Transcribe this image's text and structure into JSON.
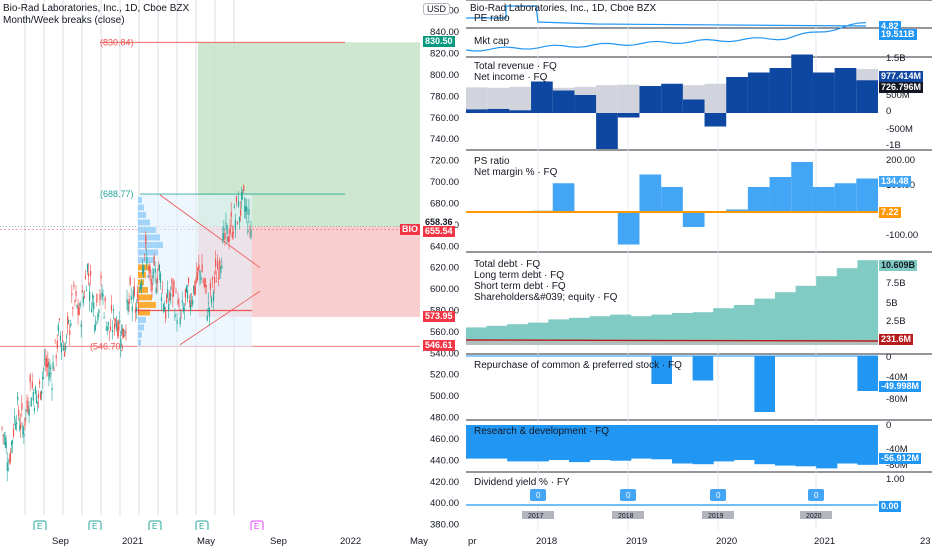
{
  "main_chart": {
    "title": "Bio-Rad Laboratories, Inc., 1D, Cboe BZX",
    "indicator": "Month/Week breaks (close)",
    "currency": "USD",
    "symbol_tag": "BIO",
    "target_label": "(830.84)",
    "mid_label": "(688.77)",
    "low_label": "(546.70)",
    "price_tags": {
      "target": "830.50",
      "price": "658.36",
      "bio": "655.54",
      "stop_upper": "573.95",
      "stop": "546.61"
    },
    "earnings_marker": "E",
    "colors": {
      "up": "#26a69a",
      "down": "#ef5350",
      "target_zone": "#c8e6c9",
      "stop_zone": "#f8c9c9",
      "target_tag": "#089981",
      "stop_tag": "#f23645"
    }
  },
  "chart_data": [
    {
      "type": "line",
      "title": "Bio-Rad Laboratories, Inc., 1D, Cboe BZX",
      "xlabel": "",
      "ylabel": "",
      "x_ticks": [
        "Sep",
        "2021",
        "May",
        "Sep",
        "2022",
        "May"
      ],
      "y_ticks": [
        380,
        400,
        420,
        440,
        460,
        480,
        500,
        520,
        540,
        560,
        580,
        600,
        620,
        640,
        660,
        680,
        700,
        720,
        740,
        760,
        780,
        800,
        820,
        840,
        860
      ],
      "ylim": [
        375,
        870
      ],
      "series": [
        {
          "values": [
            470,
            440,
            490,
            470,
            510,
            495,
            530,
            520,
            560,
            545,
            590,
            575,
            620,
            580,
            600,
            560,
            575,
            560,
            590,
            580,
            640,
            600,
            620,
            580,
            600,
            570,
            590,
            600,
            620,
            580,
            610,
            640,
            655,
            670,
            680,
            655
          ]
        }
      ],
      "levels": {
        "target": 830.5,
        "entry": 658.36,
        "last": 655.54,
        "stop_upper": 573.95,
        "stop": 546.61,
        "mid": 688.77
      }
    },
    {
      "type": "line",
      "title": "PE ratio",
      "y_ticks": [],
      "series": [
        {
          "name": "PE ratio",
          "values": [
            90,
            75,
            4.82,
            4.82,
            4.82,
            4.82,
            4.82
          ]
        }
      ],
      "last_value": "4.82"
    },
    {
      "type": "line",
      "title": "Mkt cap",
      "series": [
        {
          "name": "Mkt cap",
          "values": [
            13.5,
            13.8,
            14.0,
            14.6,
            15.3,
            16.8,
            19.5
          ]
        }
      ],
      "last_value": "19.511B"
    },
    {
      "type": "bar",
      "title": "Total revenue · FQ / Net income · FQ",
      "y_ticks": [
        "1.5B",
        "1B",
        "500M",
        "0",
        "-500M",
        "-1B"
      ],
      "ylim": [
        -1200,
        1700
      ],
      "series": [
        {
          "name": "Total revenue · FQ",
          "values": [
            570,
            560,
            580,
            600,
            560,
            580,
            620,
            630,
            540,
            600,
            620,
            650,
            680,
            720,
            740,
            760,
            790,
            820,
            977
          ]
        },
        {
          "name": "Net income · FQ",
          "values": [
            80,
            90,
            60,
            700,
            500,
            400,
            -800,
            -100,
            600,
            650,
            300,
            -300,
            800,
            900,
            1000,
            1300,
            900,
            1000,
            727
          ]
        }
      ],
      "last_values": [
        "977.414M",
        "726.796M"
      ]
    },
    {
      "type": "bar",
      "title": "PS ratio / Net margin % · FQ",
      "y_ticks": [
        "200.00",
        "100.00",
        "0.00",
        "-100.00"
      ],
      "ylim": [
        -170,
        230
      ],
      "series": [
        {
          "name": "Net margin % · FQ",
          "values": [
            0,
            0,
            0,
            5,
            115,
            0,
            0,
            -130,
            150,
            100,
            -60,
            0,
            10,
            100,
            140,
            200,
            100,
            115,
            134
          ]
        },
        {
          "name": "PS ratio",
          "values": [
            7,
            7,
            7,
            7,
            7,
            7,
            7,
            7,
            7,
            7,
            7,
            7,
            7,
            7,
            7,
            7,
            7,
            7,
            7.22
          ]
        }
      ],
      "last_values": [
        "134.48",
        "7.22"
      ]
    },
    {
      "type": "area",
      "title": "Total debt · FQ / Long term debt · FQ / Short term debt · FQ / Shareholders&#039; equity · FQ",
      "y_ticks": [
        "10B",
        "7.5B",
        "5B",
        "2.5B"
      ],
      "series": [
        {
          "name": "Shareholders&#039; equity · FQ",
          "values": [
            2.2,
            2.4,
            2.6,
            2.8,
            3.2,
            3.4,
            3.6,
            3.8,
            3.6,
            3.8,
            4.0,
            4.1,
            4.6,
            5.0,
            5.8,
            6.6,
            7.4,
            8.6,
            9.6,
            10.6
          ]
        },
        {
          "name": "Total debt · FQ",
          "values": [
            0.4,
            0.4,
            0.4,
            0.4,
            0.4,
            0.4,
            0.4,
            0.4,
            0.4,
            0.4,
            0.4,
            0.4,
            0.4,
            0.4,
            0.4,
            0.4,
            0.4,
            0.3,
            0.25,
            0.23
          ]
        }
      ],
      "last_values": [
        "10.609B",
        "231.6M"
      ]
    },
    {
      "type": "bar",
      "title": "Repurchase of common & preferred stock · FQ",
      "y_ticks": [
        "0",
        "-40M",
        "-80M"
      ],
      "series": [
        {
          "name": "Repurchase of common & preferred stock · FQ",
          "values": [
            0,
            0,
            0,
            0,
            0,
            0,
            0,
            0,
            0,
            -40,
            0,
            -35,
            0,
            0,
            -80,
            0,
            0,
            0,
            0,
            -49.998
          ]
        }
      ],
      "last_value": "-49.998M"
    },
    {
      "type": "bar",
      "title": "Research & development · FQ",
      "y_ticks": [
        "0",
        "-40M",
        "-80M"
      ],
      "series": [
        {
          "name": "Research & development · FQ",
          "values": [
            -48,
            -48,
            -52,
            -52,
            -50,
            -53,
            -50,
            -51,
            -48,
            -49,
            -55,
            -56,
            -52,
            -50,
            -56,
            -58,
            -59,
            -62,
            -55,
            -56.912
          ]
        }
      ],
      "last_value": "-56.912M"
    },
    {
      "type": "line",
      "title": "Dividend yield % · FY",
      "y_ticks": [
        "1.00",
        "0.00",
        "-1.00"
      ],
      "x_ticks": [
        "2018",
        "2019",
        "2020",
        "2021"
      ],
      "year_labels": [
        "2017",
        "2018",
        "2019",
        "2020"
      ],
      "series": [
        {
          "name": "Dividend yield % · FY",
          "values": [
            0,
            0,
            0,
            0
          ]
        }
      ],
      "last_value": "0.00"
    }
  ],
  "right_panel": {
    "header": "Bio-Rad Laboratories, Inc., 1D, Cboe BZX",
    "panes": {
      "pe": {
        "label": "PE ratio",
        "value": "4.82"
      },
      "mktcap": {
        "label": "Mkt cap",
        "value": "19.511B"
      },
      "revenue": {
        "label1": "Total revenue · FQ",
        "label2": "Net income · FQ",
        "v1": "977.414M",
        "v2": "726.796M"
      },
      "ps": {
        "label1": "PS ratio",
        "label2": "Net margin % · FQ",
        "v1": "134.48",
        "v2": "7.22"
      },
      "debt": {
        "label1": "Total debt · FQ",
        "label2": "Long term debt · FQ",
        "label3": "Short term debt · FQ",
        "label4": "Shareholders&#039; equity · FQ",
        "v1": "10.609B",
        "v2": "231.6M"
      },
      "repurchase": {
        "label": "Repurchase of common & preferred stock · FQ",
        "value": "-49.998M"
      },
      "rnd": {
        "label": "Research & development · FQ",
        "value": "-56.912M"
      },
      "dividend": {
        "label": "Dividend yield % · FY",
        "value": "0.00",
        "marker": "0"
      }
    },
    "x_ticks": [
      "pr",
      "2018",
      "2019",
      "2020",
      "2021",
      "23"
    ]
  }
}
